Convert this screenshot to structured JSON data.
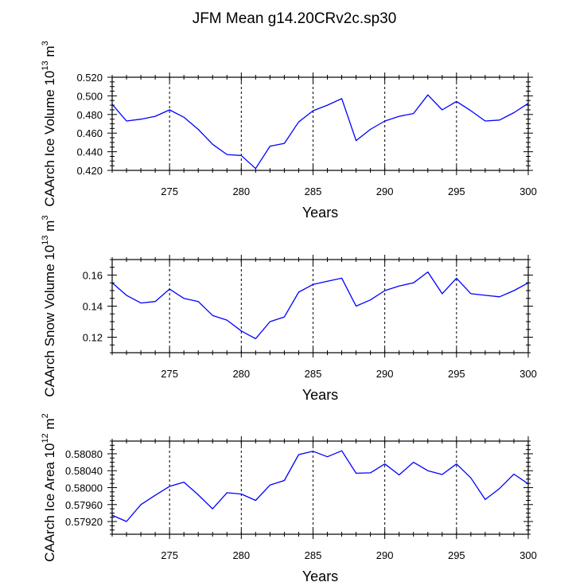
{
  "figure": {
    "title": "JFM Mean g14.20CRv2c.sp30"
  },
  "chart_data": [
    {
      "type": "line",
      "ylabel": "CAArch Ice Volume 10",
      "ylabel_exp": "13",
      "ylabel_unit": "m",
      "ylabel_unit_exp": "3",
      "xlabel": "Years",
      "xlim": [
        271,
        300
      ],
      "ylim": [
        0.42,
        0.52
      ],
      "xticks": [
        275,
        280,
        285,
        290,
        295,
        300
      ],
      "xtick_labels": [
        "275",
        "280",
        "285",
        "290",
        "295",
        "300"
      ],
      "yticks": [
        0.42,
        0.44,
        0.46,
        0.48,
        0.5,
        0.52
      ],
      "ytick_labels": [
        "0.420",
        "0.440",
        "0.460",
        "0.480",
        "0.500",
        "0.520"
      ],
      "series": [
        {
          "name": "CAArch Ice Volume",
          "color": "#0000ff",
          "x": [
            271,
            272,
            273,
            274,
            275,
            276,
            277,
            278,
            279,
            280,
            281,
            282,
            283,
            284,
            285,
            286,
            287,
            288,
            289,
            290,
            291,
            292,
            293,
            294,
            295,
            296,
            297,
            298,
            299,
            300
          ],
          "values": [
            0.491,
            0.473,
            0.475,
            0.478,
            0.485,
            0.477,
            0.464,
            0.448,
            0.437,
            0.436,
            0.422,
            0.446,
            0.449,
            0.472,
            0.484,
            0.49,
            0.497,
            0.452,
            0.464,
            0.473,
            0.478,
            0.481,
            0.501,
            0.485,
            0.494,
            0.484,
            0.473,
            0.474,
            0.482,
            0.492
          ]
        }
      ]
    },
    {
      "type": "line",
      "ylabel": "CAArch Snow Volume 10",
      "ylabel_exp": "13",
      "ylabel_unit": "m",
      "ylabel_unit_exp": "3",
      "xlabel": "Years",
      "xlim": [
        271,
        300
      ],
      "ylim": [
        0.11,
        0.17
      ],
      "xticks": [
        275,
        280,
        285,
        290,
        295,
        300
      ],
      "xtick_labels": [
        "275",
        "280",
        "285",
        "290",
        "295",
        "300"
      ],
      "yticks": [
        0.12,
        0.14,
        0.16
      ],
      "ytick_labels": [
        "0.12",
        "0.14",
        "0.16"
      ],
      "series": [
        {
          "name": "CAArch Snow Volume",
          "color": "#0000ff",
          "x": [
            271,
            272,
            273,
            274,
            275,
            276,
            277,
            278,
            279,
            280,
            281,
            282,
            283,
            284,
            285,
            286,
            287,
            288,
            289,
            290,
            291,
            292,
            293,
            294,
            295,
            296,
            297,
            298,
            299,
            300
          ],
          "values": [
            0.155,
            0.147,
            0.142,
            0.143,
            0.151,
            0.145,
            0.143,
            0.134,
            0.131,
            0.124,
            0.119,
            0.13,
            0.133,
            0.149,
            0.154,
            0.156,
            0.158,
            0.14,
            0.144,
            0.15,
            0.153,
            0.155,
            0.162,
            0.148,
            0.158,
            0.148,
            0.147,
            0.146,
            0.15,
            0.155
          ]
        }
      ]
    },
    {
      "type": "line",
      "ylabel": "CAArch Ice Area 10",
      "ylabel_exp": "12",
      "ylabel_unit": "m",
      "ylabel_unit_exp": "2",
      "xlabel": "Years",
      "xlim": [
        271,
        300
      ],
      "ylim": [
        0.5789,
        0.5811
      ],
      "xticks": [
        275,
        280,
        285,
        290,
        295,
        300
      ],
      "xtick_labels": [
        "275",
        "280",
        "285",
        "290",
        "295",
        "300"
      ],
      "yticks": [
        0.5792,
        0.5796,
        0.58,
        0.5804,
        0.5808
      ],
      "ytick_labels": [
        "0.57920",
        "0.57960",
        "0.58000",
        "0.58040",
        "0.58080"
      ],
      "series": [
        {
          "name": "CAArch Ice Area",
          "color": "#0000ff",
          "x": [
            271,
            272,
            273,
            274,
            275,
            276,
            277,
            278,
            279,
            280,
            281,
            282,
            283,
            284,
            285,
            286,
            287,
            288,
            289,
            290,
            291,
            292,
            293,
            294,
            295,
            296,
            297,
            298,
            299,
            300
          ],
          "values": [
            0.57935,
            0.5792,
            0.5796,
            0.57982,
            0.58003,
            0.58013,
            0.57983,
            0.5795,
            0.57988,
            0.57985,
            0.5797,
            0.58006,
            0.58017,
            0.58078,
            0.58086,
            0.58073,
            0.58087,
            0.58034,
            0.58035,
            0.58056,
            0.5803,
            0.5806,
            0.5804,
            0.58031,
            0.58056,
            0.58023,
            0.57972,
            0.57998,
            0.58032,
            0.58009
          ]
        }
      ]
    }
  ]
}
